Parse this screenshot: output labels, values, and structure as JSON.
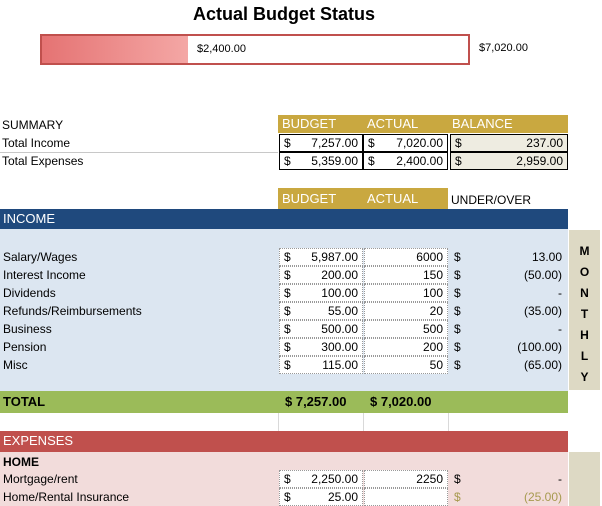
{
  "header": {
    "title": "Actual Budget Status"
  },
  "progress": {
    "actual_label": "$2,400.00",
    "total_label": "$7,020.00",
    "fraction": 0.342
  },
  "summary": {
    "label": "SUMMARY",
    "col_budget": "BUDGET",
    "col_actual": "ACTUAL",
    "col_balance": "BALANCE",
    "currency": "$",
    "rows": [
      {
        "label": "Total Income",
        "budget": "7,257.00",
        "actual": "7,020.00",
        "balance": "237.00"
      },
      {
        "label": "Total Expenses",
        "budget": "5,359.00",
        "actual": "2,400.00",
        "balance": "2,959.00"
      }
    ]
  },
  "columns": {
    "budget": "BUDGET",
    "actual": "ACTUAL",
    "under_over": "UNDER/OVER"
  },
  "income": {
    "heading": "INCOME",
    "rows": [
      {
        "label": "Salary/Wages",
        "budget": "5,987.00",
        "actual": "6000",
        "diff": "13.00"
      },
      {
        "label": "Interest Income",
        "budget": "200.00",
        "actual": "150",
        "diff": "(50.00)"
      },
      {
        "label": "Dividends",
        "budget": "100.00",
        "actual": "100",
        "diff": "-"
      },
      {
        "label": "Refunds/Reimbursements",
        "budget": "55.00",
        "actual": "20",
        "diff": "(35.00)"
      },
      {
        "label": "Business",
        "budget": "500.00",
        "actual": "500",
        "diff": "-"
      },
      {
        "label": "Pension",
        "budget": "300.00",
        "actual": "200",
        "diff": "(100.00)"
      },
      {
        "label": "Misc",
        "budget": "115.00",
        "actual": "50",
        "diff": "(65.00)"
      }
    ],
    "total_label": "TOTAL",
    "total_budget": "$ 7,257.00",
    "total_actual": "$ 7,020.00"
  },
  "monthly_letters": [
    "M",
    "O",
    "N",
    "T",
    "H",
    "L",
    "Y"
  ],
  "expenses": {
    "heading": "EXPENSES",
    "section": "HOME",
    "rows": [
      {
        "label": "Mortgage/rent",
        "budget": "2,250.00",
        "actual": "2250",
        "diff": "-"
      },
      {
        "label": "Home/Rental Insurance",
        "budget": "25.00",
        "actual": "",
        "diff": "(25.00)"
      }
    ]
  },
  "colors": {
    "income": "#1f497d",
    "total": "#9bbb59",
    "expenses": "#c0504d",
    "gold": "#c9a840"
  }
}
